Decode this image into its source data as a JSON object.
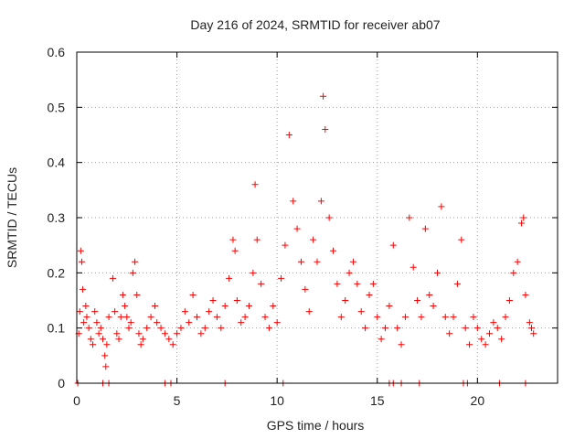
{
  "chart_data": {
    "type": "scatter",
    "title": "Day 216 of 2024, SRMTID for receiver ab07",
    "xlabel": "GPS time / hours",
    "ylabel": "SRMTID / TECUs",
    "xlim": [
      0,
      24
    ],
    "ylim": [
      0,
      0.6
    ],
    "xticks": [
      0,
      5,
      10,
      15,
      20
    ],
    "xtick_labels": [
      "0",
      "5",
      "10",
      "15",
      "20"
    ],
    "yticks": [
      0,
      0.1,
      0.2,
      0.3,
      0.4,
      0.5,
      0.6
    ],
    "ytick_labels": [
      "0",
      "0.1",
      "0.2",
      "0.3",
      "0.4",
      "0.5",
      "0.6"
    ],
    "grid": true,
    "marker": "+",
    "marker_color": "#ff0000",
    "series": [
      {
        "name": "SRMTID",
        "points": [
          [
            0.1,
            0.09
          ],
          [
            0.15,
            0.13
          ],
          [
            0.2,
            0.24
          ],
          [
            0.25,
            0.22
          ],
          [
            0.3,
            0.17
          ],
          [
            0.35,
            0.11
          ],
          [
            0.45,
            0.14
          ],
          [
            0.5,
            0.12
          ],
          [
            0.6,
            0.1
          ],
          [
            0.7,
            0.08
          ],
          [
            0.8,
            0.07
          ],
          [
            0.9,
            0.13
          ],
          [
            1.0,
            0.11
          ],
          [
            1.1,
            0.09
          ],
          [
            1.2,
            0.1
          ],
          [
            1.3,
            0.08
          ],
          [
            1.4,
            0.05
          ],
          [
            1.45,
            0.03
          ],
          [
            1.5,
            0.07
          ],
          [
            1.6,
            0.12
          ],
          [
            1.8,
            0.19
          ],
          [
            1.9,
            0.13
          ],
          [
            2.0,
            0.09
          ],
          [
            2.1,
            0.08
          ],
          [
            2.2,
            0.12
          ],
          [
            2.3,
            0.16
          ],
          [
            2.4,
            0.14
          ],
          [
            2.5,
            0.12
          ],
          [
            2.6,
            0.1
          ],
          [
            2.7,
            0.11
          ],
          [
            2.8,
            0.2
          ],
          [
            2.9,
            0.22
          ],
          [
            3.0,
            0.16
          ],
          [
            3.1,
            0.09
          ],
          [
            3.2,
            0.07
          ],
          [
            3.3,
            0.08
          ],
          [
            3.5,
            0.1
          ],
          [
            3.7,
            0.12
          ],
          [
            3.9,
            0.14
          ],
          [
            4.0,
            0.11
          ],
          [
            4.2,
            0.1
          ],
          [
            4.4,
            0.09
          ],
          [
            4.6,
            0.08
          ],
          [
            4.8,
            0.07
          ],
          [
            5.0,
            0.09
          ],
          [
            5.2,
            0.1
          ],
          [
            5.4,
            0.13
          ],
          [
            5.6,
            0.11
          ],
          [
            5.8,
            0.16
          ],
          [
            6.0,
            0.12
          ],
          [
            6.2,
            0.09
          ],
          [
            6.4,
            0.1
          ],
          [
            6.6,
            0.13
          ],
          [
            6.8,
            0.15
          ],
          [
            7.0,
            0.12
          ],
          [
            7.2,
            0.1
          ],
          [
            7.4,
            0.14
          ],
          [
            7.6,
            0.19
          ],
          [
            7.8,
            0.26
          ],
          [
            7.9,
            0.24
          ],
          [
            8.0,
            0.15
          ],
          [
            8.2,
            0.11
          ],
          [
            8.4,
            0.12
          ],
          [
            8.6,
            0.14
          ],
          [
            8.8,
            0.2
          ],
          [
            8.9,
            0.36
          ],
          [
            9.0,
            0.26
          ],
          [
            9.2,
            0.18
          ],
          [
            9.4,
            0.12
          ],
          [
            9.6,
            0.1
          ],
          [
            9.8,
            0.14
          ],
          [
            10.0,
            0.11
          ],
          [
            10.2,
            0.19
          ],
          [
            10.4,
            0.25
          ],
          [
            10.6,
            0.45
          ],
          [
            10.8,
            0.33
          ],
          [
            11.0,
            0.28
          ],
          [
            11.2,
            0.22
          ],
          [
            11.4,
            0.17
          ],
          [
            11.6,
            0.13
          ],
          [
            11.8,
            0.26
          ],
          [
            12.0,
            0.22
          ],
          [
            12.2,
            0.33
          ],
          [
            12.3,
            0.52
          ],
          [
            12.4,
            0.46
          ],
          [
            12.6,
            0.3
          ],
          [
            12.8,
            0.24
          ],
          [
            13.0,
            0.18
          ],
          [
            13.2,
            0.12
          ],
          [
            13.4,
            0.15
          ],
          [
            13.6,
            0.2
          ],
          [
            13.8,
            0.22
          ],
          [
            14.0,
            0.18
          ],
          [
            14.2,
            0.13
          ],
          [
            14.4,
            0.1
          ],
          [
            14.6,
            0.16
          ],
          [
            14.8,
            0.18
          ],
          [
            15.0,
            0.12
          ],
          [
            15.2,
            0.08
          ],
          [
            15.4,
            0.1
          ],
          [
            15.6,
            0.14
          ],
          [
            15.8,
            0.25
          ],
          [
            16.0,
            0.1
          ],
          [
            16.2,
            0.07
          ],
          [
            16.4,
            0.12
          ],
          [
            16.6,
            0.3
          ],
          [
            16.8,
            0.21
          ],
          [
            17.0,
            0.15
          ],
          [
            17.2,
            0.12
          ],
          [
            17.4,
            0.28
          ],
          [
            17.6,
            0.16
          ],
          [
            17.8,
            0.14
          ],
          [
            18.0,
            0.2
          ],
          [
            18.2,
            0.32
          ],
          [
            18.4,
            0.12
          ],
          [
            18.6,
            0.09
          ],
          [
            18.8,
            0.12
          ],
          [
            19.0,
            0.18
          ],
          [
            19.2,
            0.26
          ],
          [
            19.4,
            0.1
          ],
          [
            19.6,
            0.07
          ],
          [
            19.8,
            0.12
          ],
          [
            20.0,
            0.1
          ],
          [
            20.2,
            0.08
          ],
          [
            20.4,
            0.07
          ],
          [
            20.6,
            0.09
          ],
          [
            20.8,
            0.11
          ],
          [
            21.0,
            0.1
          ],
          [
            21.2,
            0.08
          ],
          [
            21.4,
            0.12
          ],
          [
            21.6,
            0.15
          ],
          [
            21.8,
            0.2
          ],
          [
            22.0,
            0.22
          ],
          [
            22.2,
            0.29
          ],
          [
            22.3,
            0.3
          ],
          [
            22.4,
            0.16
          ],
          [
            22.6,
            0.11
          ],
          [
            22.7,
            0.1
          ],
          [
            22.8,
            0.09
          ],
          [
            0.05,
            0.0
          ],
          [
            1.3,
            0.0
          ],
          [
            1.6,
            0.0
          ],
          [
            4.4,
            0.0
          ],
          [
            4.7,
            0.0
          ],
          [
            7.4,
            0.0
          ],
          [
            10.3,
            0.0
          ],
          [
            15.6,
            0.0
          ],
          [
            15.8,
            0.0
          ],
          [
            16.2,
            0.0
          ],
          [
            17.1,
            0.0
          ],
          [
            19.3,
            0.0
          ],
          [
            19.5,
            0.0
          ],
          [
            21.1,
            0.0
          ],
          [
            22.4,
            0.0
          ]
        ]
      }
    ]
  }
}
